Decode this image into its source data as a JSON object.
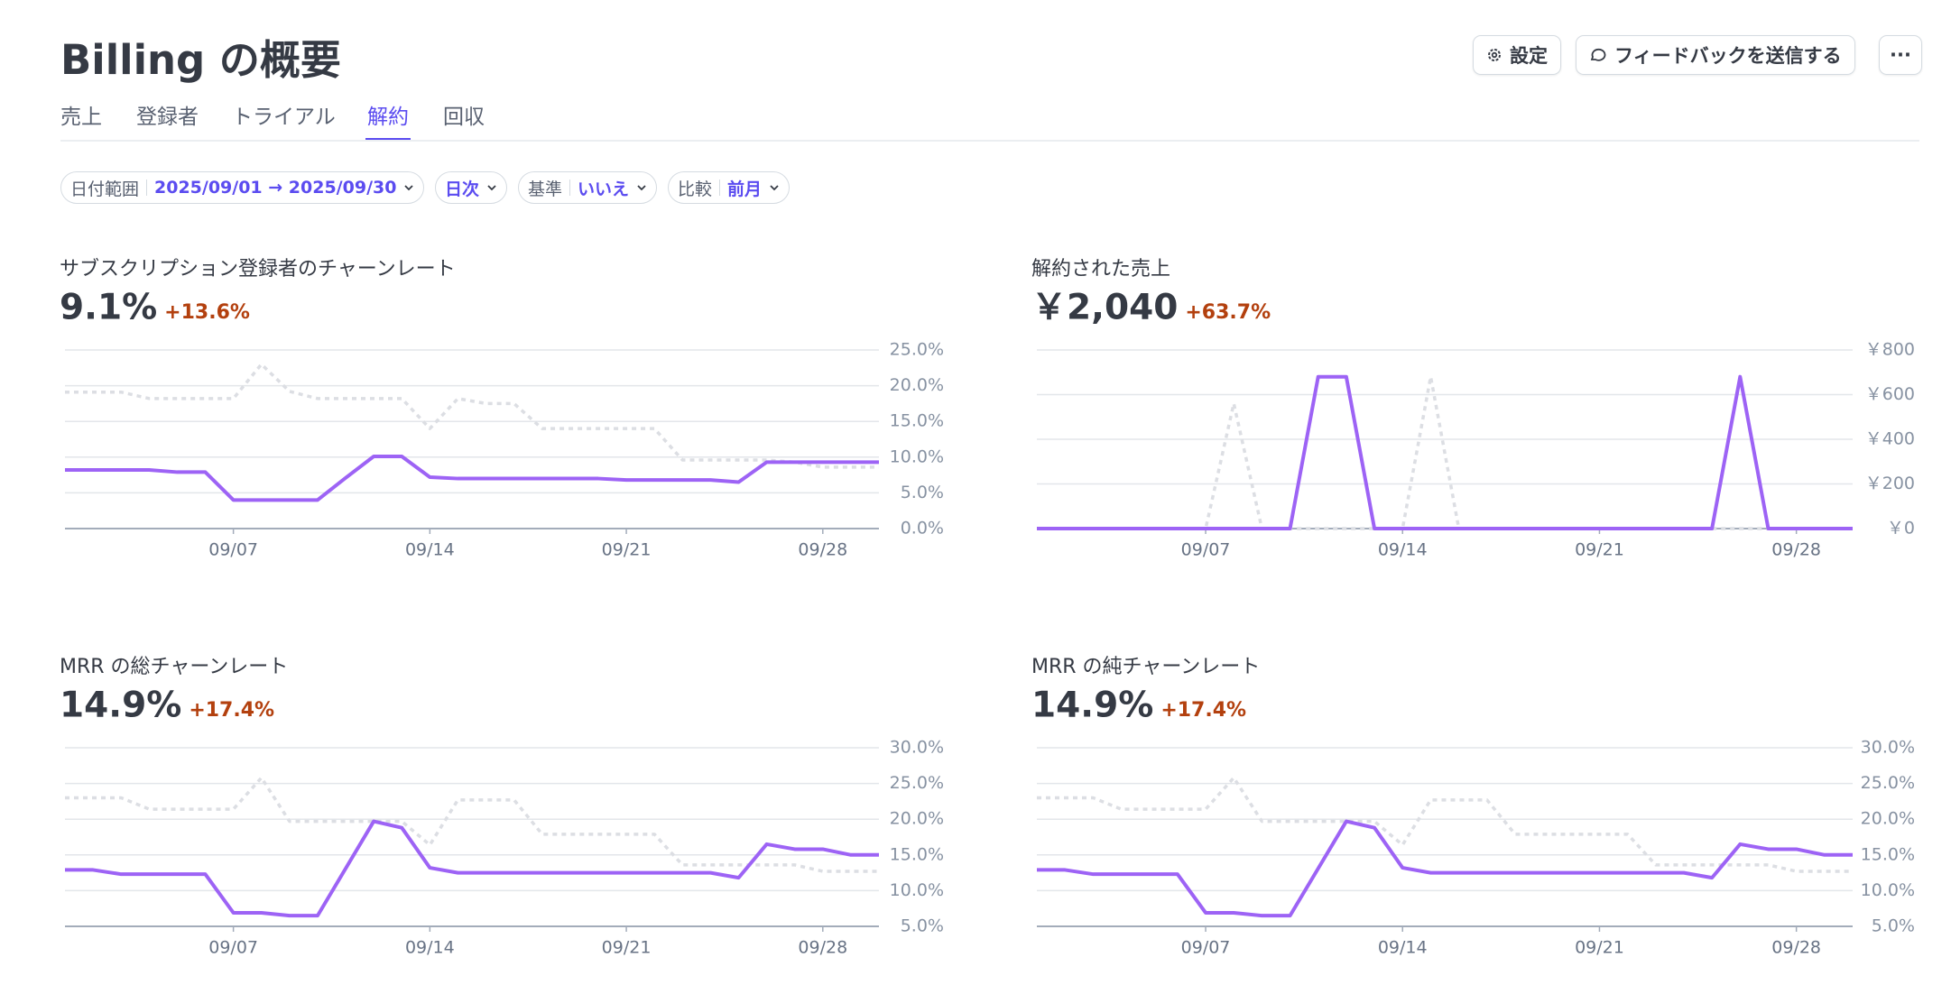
{
  "header": {
    "title": "Billing の概要",
    "buttons": [
      "設定",
      "フィードバックを送信する",
      "···"
    ]
  },
  "tabs": {
    "items": [
      "売上",
      "登録者",
      "トライアル",
      "解約",
      "回収"
    ],
    "active": 3
  },
  "filters": [
    {
      "label": "日付範囲",
      "value": "2025/09/01 → 2025/09/30"
    },
    {
      "value": "日次"
    },
    {
      "label": "基準",
      "value": "いいえ"
    },
    {
      "label": "比較",
      "value": "前月"
    }
  ],
  "chart_data": [
    {
      "type": "line",
      "title": "サブスクリプション登録者のチャーンレート",
      "kpi": "9.1%",
      "change": "+13.6%",
      "categories": [
        null,
        null,
        null,
        null,
        null,
        null,
        "09/07",
        null,
        null,
        null,
        null,
        null,
        null,
        "09/14",
        null,
        null,
        null,
        null,
        null,
        null,
        "09/21",
        null,
        null,
        null,
        null,
        null,
        null,
        "09/28",
        null,
        null
      ],
      "ylim": [
        0,
        25
      ],
      "yticks": [
        {
          "value": 0,
          "label": "0.0%"
        },
        {
          "value": 5,
          "label": "5.0%"
        },
        {
          "value": 10,
          "label": "10.0%"
        },
        {
          "value": 15,
          "label": "15.0%"
        },
        {
          "value": 20,
          "label": "20.0%"
        },
        {
          "value": 25,
          "label": "25.0%"
        }
      ],
      "grid": true,
      "series": [
        {
          "color": "#dcdee3",
          "dashed": true,
          "values": [
            19.1,
            19.1,
            19.1,
            18.2,
            18.2,
            18.2,
            18.2,
            23,
            19.2,
            18.2,
            18.2,
            18.2,
            18.2,
            14,
            18.2,
            17.5,
            17.5,
            14,
            14,
            14,
            14,
            14,
            9.6,
            9.6,
            9.6,
            9.6,
            9.3,
            8.6,
            8.6,
            8.6
          ]
        },
        {
          "color": "#9d63f5",
          "dashed": false,
          "values": [
            8.2,
            8.2,
            8.2,
            8.2,
            7.9,
            7.9,
            4,
            4,
            4,
            4,
            7.1,
            10.1,
            10.1,
            7.2,
            7,
            7,
            7,
            7,
            7,
            7,
            6.8,
            6.8,
            6.8,
            6.8,
            6.5,
            9.3,
            9.3,
            9.3,
            9.3,
            9.3
          ]
        }
      ]
    },
    {
      "type": "line",
      "title": "解約された売上",
      "kpi": "￥2,040",
      "change": "+63.7%",
      "categories": [
        null,
        null,
        null,
        null,
        null,
        null,
        "09/07",
        null,
        null,
        null,
        null,
        null,
        null,
        "09/14",
        null,
        null,
        null,
        null,
        null,
        null,
        "09/21",
        null,
        null,
        null,
        null,
        null,
        null,
        "09/28",
        null,
        null
      ],
      "ylim": [
        0,
        800
      ],
      "yticks": [
        {
          "value": 0,
          "label": "￥0"
        },
        {
          "value": 200,
          "label": "￥200"
        },
        {
          "value": 400,
          "label": "￥400"
        },
        {
          "value": 600,
          "label": "￥600"
        },
        {
          "value": 800,
          "label": "￥800"
        }
      ],
      "grid": true,
      "series": [
        {
          "color": "#dcdee3",
          "dashed": true,
          "values": [
            0,
            0,
            0,
            0,
            0,
            0,
            0,
            560,
            0,
            0,
            0,
            0,
            0,
            0,
            680,
            0,
            0,
            0,
            0,
            0,
            0,
            0,
            0,
            0,
            0,
            0,
            0,
            0,
            0,
            0
          ]
        },
        {
          "color": "#9d63f5",
          "dashed": false,
          "values": [
            0,
            0,
            0,
            0,
            0,
            0,
            0,
            0,
            0,
            0,
            680,
            680,
            0,
            0,
            0,
            0,
            0,
            0,
            0,
            0,
            0,
            0,
            0,
            0,
            0,
            680,
            0,
            0,
            0,
            0
          ]
        }
      ]
    },
    {
      "type": "line",
      "title": "MRR の総チャーンレート",
      "kpi": "14.9%",
      "change": "+17.4%",
      "categories": [
        null,
        null,
        null,
        null,
        null,
        null,
        "09/07",
        null,
        null,
        null,
        null,
        null,
        null,
        "09/14",
        null,
        null,
        null,
        null,
        null,
        null,
        "09/21",
        null,
        null,
        null,
        null,
        null,
        null,
        "09/28",
        null,
        null
      ],
      "ylim": [
        5,
        30
      ],
      "yticks": [
        {
          "value": 5,
          "label": "5.0%"
        },
        {
          "value": 10,
          "label": "10.0%"
        },
        {
          "value": 15,
          "label": "15.0%"
        },
        {
          "value": 20,
          "label": "20.0%"
        },
        {
          "value": 25,
          "label": "25.0%"
        },
        {
          "value": 30,
          "label": "30.0%"
        }
      ],
      "grid": true,
      "series": [
        {
          "color": "#dcdee3",
          "dashed": true,
          "values": [
            23,
            23,
            23,
            21.4,
            21.4,
            21.4,
            21.4,
            25.8,
            19.7,
            19.7,
            19.7,
            19.7,
            19.7,
            16.4,
            22.7,
            22.7,
            22.7,
            17.9,
            17.9,
            17.9,
            17.9,
            17.9,
            13.6,
            13.6,
            13.6,
            13.6,
            13.6,
            12.7,
            12.7,
            12.7
          ]
        },
        {
          "color": "#9d63f5",
          "dashed": false,
          "values": [
            12.9,
            12.9,
            12.3,
            12.3,
            12.3,
            12.3,
            6.9,
            6.9,
            6.5,
            6.5,
            13.1,
            19.7,
            18.8,
            13.2,
            12.5,
            12.5,
            12.5,
            12.5,
            12.5,
            12.5,
            12.5,
            12.5,
            12.5,
            12.5,
            11.8,
            16.5,
            15.8,
            15.8,
            15,
            15
          ]
        }
      ]
    },
    {
      "type": "line",
      "title": "MRR の純チャーンレート",
      "kpi": "14.9%",
      "change": "+17.4%",
      "categories": [
        null,
        null,
        null,
        null,
        null,
        null,
        "09/07",
        null,
        null,
        null,
        null,
        null,
        null,
        "09/14",
        null,
        null,
        null,
        null,
        null,
        null,
        "09/21",
        null,
        null,
        null,
        null,
        null,
        null,
        "09/28",
        null,
        null
      ],
      "ylim": [
        5,
        30
      ],
      "yticks": [
        {
          "value": 5,
          "label": "5.0%"
        },
        {
          "value": 10,
          "label": "10.0%"
        },
        {
          "value": 15,
          "label": "15.0%"
        },
        {
          "value": 20,
          "label": "20.0%"
        },
        {
          "value": 25,
          "label": "25.0%"
        },
        {
          "value": 30,
          "label": "30.0%"
        }
      ],
      "grid": true,
      "series": [
        {
          "color": "#dcdee3",
          "dashed": true,
          "values": [
            23,
            23,
            23,
            21.4,
            21.4,
            21.4,
            21.4,
            25.8,
            19.7,
            19.7,
            19.7,
            19.7,
            19.7,
            16.4,
            22.7,
            22.7,
            22.7,
            17.9,
            17.9,
            17.9,
            17.9,
            17.9,
            13.6,
            13.6,
            13.6,
            13.6,
            13.6,
            12.7,
            12.7,
            12.7
          ]
        },
        {
          "color": "#9d63f5",
          "dashed": false,
          "values": [
            12.9,
            12.9,
            12.3,
            12.3,
            12.3,
            12.3,
            6.9,
            6.9,
            6.5,
            6.5,
            13.1,
            19.7,
            18.8,
            13.2,
            12.5,
            12.5,
            12.5,
            12.5,
            12.5,
            12.5,
            12.5,
            12.5,
            12.5,
            12.5,
            11.8,
            16.5,
            15.8,
            15.8,
            15,
            15
          ]
        }
      ]
    }
  ]
}
